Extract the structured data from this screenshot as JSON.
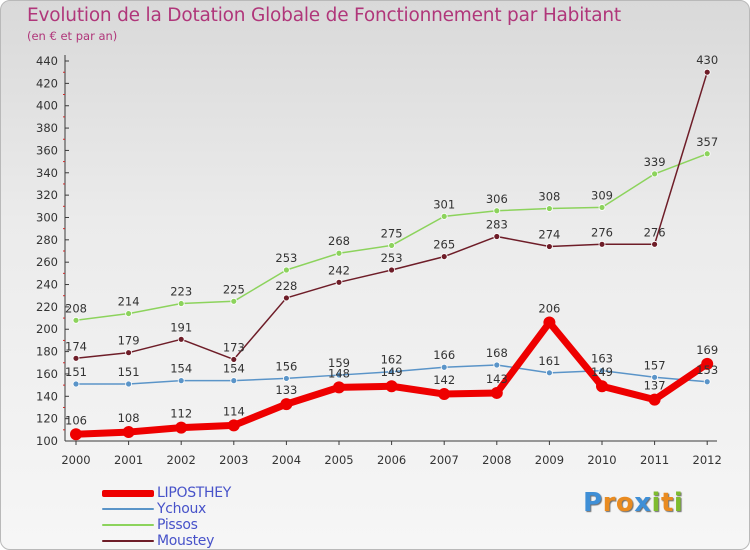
{
  "title": "Evolution de la Dotation Globale de Fonctionnement par Habitant",
  "subtitle": "(en € et par an)",
  "logo": {
    "letters": [
      "P",
      "r",
      "o",
      "x",
      "i",
      "t",
      "i"
    ],
    "colors": [
      "#3f8fd6",
      "#e98b20",
      "#e98b20",
      "#3f8fd6",
      "#7fbc2f",
      "#e98b20",
      "#7fbc2f"
    ]
  },
  "chart_data": {
    "type": "line",
    "x": [
      "2000",
      "2001",
      "2002",
      "2003",
      "2004",
      "2005",
      "2006",
      "2007",
      "2008",
      "2009",
      "2010",
      "2011",
      "2012"
    ],
    "ylim": [
      100,
      440
    ],
    "yticks": [
      "100",
      "120",
      "140",
      "160",
      "180",
      "200",
      "220",
      "240",
      "260",
      "280",
      "300",
      "320",
      "340",
      "360",
      "380",
      "400",
      "420",
      "440"
    ],
    "grid": false,
    "legend_position": "bottom-left",
    "series": [
      {
        "name": "LIPOSTHEY",
        "values": [
          106,
          108,
          112,
          114,
          133,
          148,
          149,
          142,
          143,
          206,
          149,
          137,
          169
        ],
        "labels": [
          "106",
          "108",
          "112",
          "114",
          "133",
          "148",
          "149",
          "142",
          "143",
          "206",
          "149",
          "137",
          "169"
        ],
        "color": "#ee0000"
      },
      {
        "name": "Ychoux",
        "values": [
          151,
          151,
          154,
          154,
          156,
          159,
          162,
          166,
          168,
          161,
          163,
          157,
          153
        ],
        "labels": [
          "151",
          "151",
          "154",
          "154",
          "156",
          "159",
          "162",
          "166",
          "168",
          "161",
          "163",
          "157",
          "153"
        ],
        "color": "#5a94c8"
      },
      {
        "name": "Pissos",
        "values": [
          208,
          214,
          223,
          225,
          253,
          268,
          275,
          301,
          306,
          308,
          309,
          339,
          357
        ],
        "labels": [
          "208",
          "214",
          "223",
          "225",
          "253",
          "268",
          "275",
          "301",
          "306",
          "308",
          "309",
          "339",
          "357"
        ],
        "color": "#8cd35c"
      },
      {
        "name": "Moustey",
        "values": [
          174,
          179,
          191,
          173,
          228,
          242,
          253,
          265,
          283,
          274,
          276,
          276,
          430
        ],
        "labels": [
          "174",
          "179",
          "191",
          "173",
          "228",
          "242",
          "253",
          "265",
          "283",
          "274",
          "276",
          "276",
          "430"
        ],
        "color": "#6e1d28"
      }
    ]
  }
}
